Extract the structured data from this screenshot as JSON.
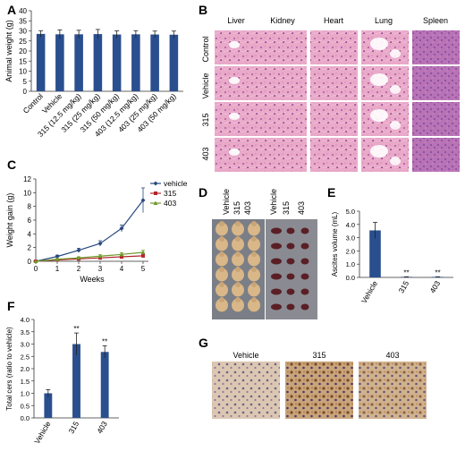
{
  "panels": {
    "A": {
      "letter": "A"
    },
    "B": {
      "letter": "B",
      "columns": [
        "Liver",
        "Kidney",
        "Heart",
        "Lung",
        "Spleen"
      ],
      "rows": [
        "Control",
        "Vehicle",
        "315",
        "403"
      ]
    },
    "C": {
      "letter": "C"
    },
    "D": {
      "letter": "D",
      "labels": [
        "Vehicle",
        "315",
        "403",
        "Vehicle",
        "315",
        "403"
      ]
    },
    "E": {
      "letter": "E"
    },
    "F": {
      "letter": "F"
    },
    "G": {
      "letter": "G",
      "labels": [
        "Vehicle",
        "315",
        "403"
      ]
    }
  },
  "colors": {
    "bar": "#2a4f8f",
    "vehicle": "#27487f",
    "c315": "#b3242c",
    "c403": "#6f9a2c",
    "he_pink": "#e7a6c6",
    "he_purple": "#a24a8f",
    "ihc_bg": "#d8c3ae",
    "ihc_brown": "#8a5627",
    "ihc_blue": "#5a5678"
  },
  "chart_data": [
    {
      "panel": "A",
      "type": "bar",
      "categories": [
        "Control",
        "Vehicle",
        "315 (12.5 mg/kg)",
        "315 (25 mg/kg)",
        "315 (50 mg/kg)",
        "403 (12.5 mg/kg)",
        "403 (25 mg/kg)",
        "403 (50 mg/kg)"
      ],
      "values": [
        28.5,
        28.3,
        28.3,
        28.4,
        28.2,
        28.3,
        28.2,
        28.1
      ],
      "errors": [
        1.6,
        2.2,
        2.0,
        2.3,
        1.8,
        1.8,
        1.7,
        1.8
      ],
      "ylabel": "Animal weight (g)",
      "ylim": [
        0,
        40
      ],
      "yticks": [
        "0",
        "5",
        "10",
        "15",
        "20",
        "25",
        "30",
        "35",
        "40"
      ]
    },
    {
      "panel": "C",
      "type": "line",
      "x": [
        0,
        1,
        2,
        3,
        4,
        5
      ],
      "series": [
        {
          "name": "vehicle",
          "values": [
            0,
            0.7,
            1.6,
            2.6,
            4.8,
            8.9
          ],
          "errors": [
            0,
            0.2,
            0.3,
            0.4,
            0.5,
            1.8
          ]
        },
        {
          "name": "315",
          "values": [
            0,
            0.2,
            0.35,
            0.5,
            0.65,
            0.8
          ],
          "errors": [
            0,
            0.1,
            0.15,
            0.15,
            0.2,
            0.25
          ]
        },
        {
          "name": "403",
          "values": [
            0,
            0.3,
            0.5,
            0.75,
            1.0,
            1.3
          ],
          "errors": [
            0,
            0.1,
            0.15,
            0.2,
            0.25,
            0.3
          ]
        }
      ],
      "xlabel": "Weeks",
      "ylabel": "Weight gain (g)",
      "ylim": [
        0,
        12
      ],
      "xticks": [
        "0",
        "1",
        "2",
        "3",
        "4",
        "5"
      ],
      "yticks": [
        "0",
        "2",
        "4",
        "6",
        "8",
        "10",
        "12"
      ]
    },
    {
      "panel": "E",
      "type": "bar",
      "categories": [
        "Vehicle",
        "315",
        "403"
      ],
      "values": [
        3.55,
        0.03,
        0.03
      ],
      "errors": [
        0.6,
        0.02,
        0.02
      ],
      "significance": [
        "",
        "**",
        "**"
      ],
      "ylabel": "Ascites volume (mL)",
      "ylim": [
        0,
        5
      ],
      "yticks": [
        "0.0",
        "1.0",
        "2.0",
        "3.0",
        "4.0",
        "5.0"
      ]
    },
    {
      "panel": "F",
      "type": "bar",
      "categories": [
        "Vehicle",
        "315",
        "403"
      ],
      "values": [
        1.0,
        3.0,
        2.68
      ],
      "errors": [
        0.15,
        0.45,
        0.25
      ],
      "significance": [
        "",
        "**",
        "**"
      ],
      "ylabel": "Total cers (ratio to vehicle)",
      "ylim": [
        0,
        4
      ],
      "yticks": [
        "0.0",
        "0.5",
        "1.0",
        "1.5",
        "2.0",
        "2.5",
        "3.0",
        "3.5",
        "4.0"
      ]
    }
  ]
}
